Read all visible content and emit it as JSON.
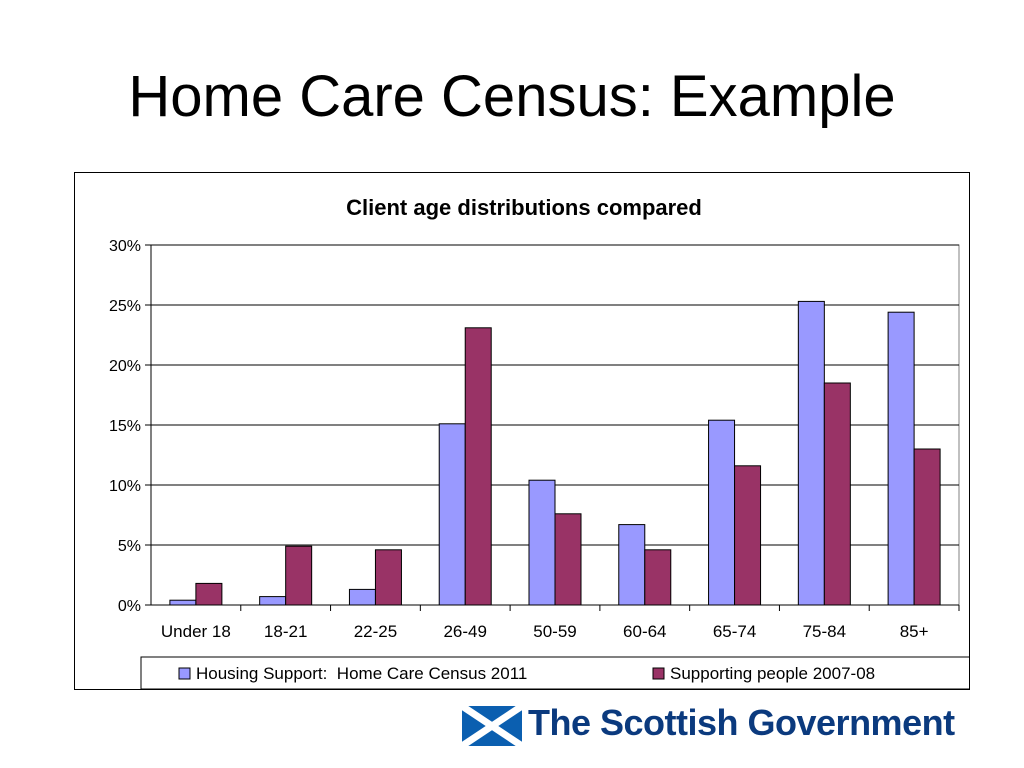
{
  "slide": {
    "title": "Home Care Census: Example"
  },
  "colors": {
    "series1": "#9999ff",
    "series2": "#993366",
    "grid": "#000000",
    "logo_blue": "#0b3a7e"
  },
  "logo": {
    "icon": "saltire-flag-icon",
    "text": "The Scottish Government"
  },
  "chart_data": {
    "type": "bar",
    "title": "Client age distributions compared",
    "xlabel": "",
    "ylabel": "",
    "ylim": [
      0,
      30
    ],
    "ytick_labels": [
      "0%",
      "5%",
      "10%",
      "15%",
      "20%",
      "25%",
      "30%"
    ],
    "grid": true,
    "legend_position": "bottom",
    "categories": [
      "Under 18",
      "18-21",
      "22-25",
      "26-49",
      "50-59",
      "60-64",
      "65-74",
      "75-84",
      "85+"
    ],
    "series": [
      {
        "name": "Housing Support:  Home Care Census 2011",
        "values": [
          0.4,
          0.7,
          1.3,
          15.1,
          10.4,
          6.7,
          15.4,
          25.3,
          24.4
        ]
      },
      {
        "name": "Supporting people 2007-08",
        "values": [
          1.8,
          4.9,
          4.6,
          23.1,
          7.6,
          4.6,
          11.6,
          18.5,
          13.0
        ]
      }
    ]
  }
}
